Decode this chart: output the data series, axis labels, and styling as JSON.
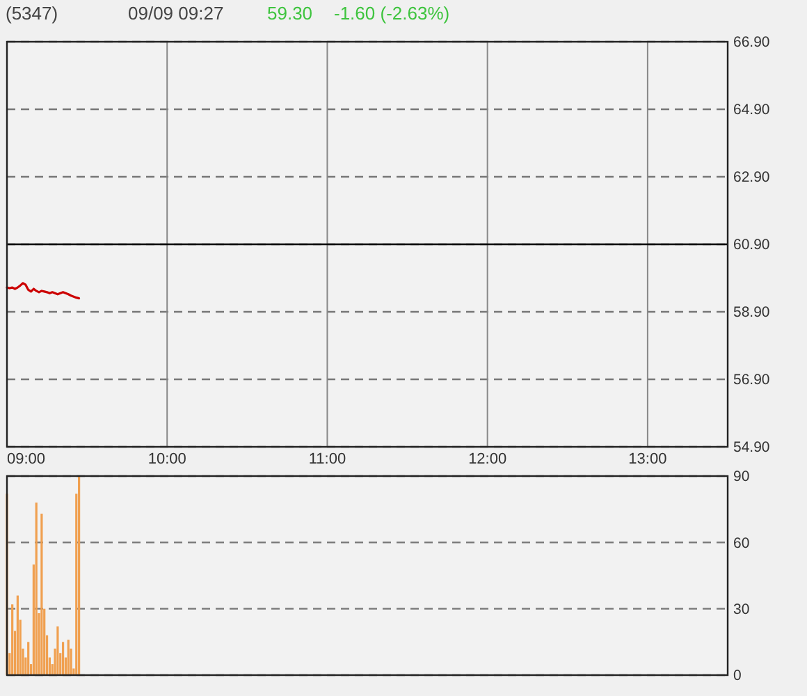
{
  "chart_data": [
    {
      "type": "line",
      "title": "(5347)",
      "subtitle": "09/09 09:27",
      "annotations": [
        "59.30",
        "-1.60 (-2.63%)"
      ],
      "x": [
        9,
        9.0167,
        9.0333,
        9.05,
        9.0667,
        9.0833,
        9.1,
        9.1167,
        9.1333,
        9.15,
        9.1667,
        9.1833,
        9.2,
        9.2167,
        9.2333,
        9.25,
        9.2667,
        9.2833,
        9.3,
        9.3167,
        9.3333,
        9.35,
        9.3667,
        9.3833,
        9.4,
        9.4167,
        9.4333,
        9.45
      ],
      "series": [
        {
          "color": "#cc0000",
          "values": [
            59.62,
            59.6,
            59.62,
            59.58,
            59.62,
            59.68,
            59.75,
            59.7,
            59.55,
            59.5,
            59.58,
            59.52,
            59.48,
            59.52,
            59.5,
            59.48,
            59.45,
            59.48,
            59.45,
            59.42,
            59.45,
            59.48,
            59.45,
            59.42,
            59.38,
            59.35,
            59.32,
            59.3
          ]
        }
      ],
      "xlim": [
        9,
        13.5
      ],
      "xticks": [
        {
          "value": 9,
          "label": "09:00"
        },
        {
          "value": 10,
          "label": "10:00"
        },
        {
          "value": 11,
          "label": "11:00"
        },
        {
          "value": 12,
          "label": "12:00"
        },
        {
          "value": 13,
          "label": "13:00"
        }
      ],
      "ylim": [
        54.9,
        66.9
      ],
      "yticks": [
        {
          "value": 54.9,
          "label": "54.90"
        },
        {
          "value": 56.9,
          "label": "56.90"
        },
        {
          "value": 58.9,
          "label": "58.90"
        },
        {
          "value": 60.9,
          "label": "60.90"
        },
        {
          "value": 62.9,
          "label": "62.90"
        },
        {
          "value": 64.9,
          "label": "64.90"
        },
        {
          "value": 66.9,
          "label": "66.90"
        }
      ],
      "grid": true,
      "ref_lines": [
        {
          "axis": "y",
          "value": 60.9,
          "color": "#000000"
        }
      ]
    },
    {
      "type": "bar",
      "x": [
        9,
        9.0167,
        9.0333,
        9.05,
        9.0667,
        9.0833,
        9.1,
        9.1167,
        9.1333,
        9.15,
        9.1667,
        9.1833,
        9.2,
        9.2167,
        9.2333,
        9.25,
        9.2667,
        9.2833,
        9.3,
        9.3167,
        9.3333,
        9.35,
        9.3667,
        9.3833,
        9.4,
        9.4167,
        9.4333,
        9.45
      ],
      "series": [
        {
          "color": "#f0a050",
          "values": [
            82,
            10,
            32,
            20,
            36,
            25,
            12,
            8,
            15,
            5,
            50,
            78,
            28,
            73,
            30,
            18,
            8,
            5,
            12,
            22,
            10,
            15,
            8,
            16,
            12,
            3,
            82,
            90
          ]
        }
      ],
      "xlim": [
        9,
        13.5
      ],
      "ylim": [
        0,
        90
      ],
      "yticks": [
        0,
        30,
        60,
        90
      ],
      "grid": "y",
      "tick_labels": "y"
    }
  ]
}
